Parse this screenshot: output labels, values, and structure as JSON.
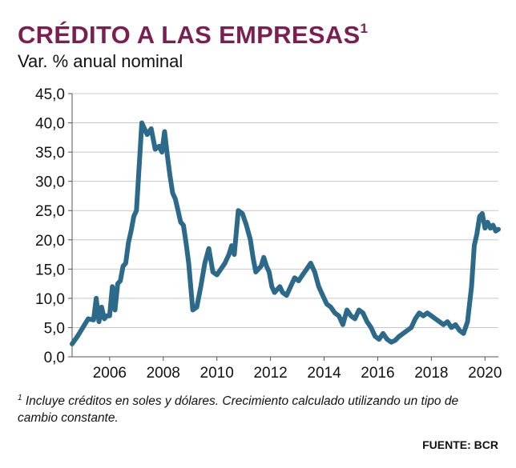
{
  "header": {
    "title": "CRÉDITO A LAS EMPRESAS",
    "title_sup": "1",
    "subtitle": "Var. % anual nominal"
  },
  "footnote": {
    "sup": "1",
    "text": "Incluye créditos en soles y dólares. Crecimiento calculado utilizando un tipo de cambio constante."
  },
  "source": "FUENTE: BCR",
  "chart_data": {
    "type": "line",
    "title": "CRÉDITO A LAS EMPRESAS",
    "ylabel": "Var. % anual nominal",
    "xlabel": "",
    "ylim": [
      0,
      45
    ],
    "xlim": [
      2004.6,
      2020.5
    ],
    "yticks": [
      "0,0",
      "5,0",
      "10,0",
      "15,0",
      "20,0",
      "25,0",
      "30,0",
      "35,0",
      "40,0",
      "45,0"
    ],
    "xticks": [
      "2006",
      "2008",
      "2010",
      "2012",
      "2014",
      "2016",
      "2018",
      "2020"
    ],
    "grid": true,
    "legend": "none",
    "line_color": "#2d6a8a",
    "series": [
      {
        "x": [
          2004.6,
          2004.8,
          2005.0,
          2005.2,
          2005.4,
          2005.5,
          2005.6,
          2005.7,
          2005.8,
          2005.9,
          2006.0,
          2006.1,
          2006.2,
          2006.3,
          2006.4,
          2006.5,
          2006.6,
          2006.7,
          2006.8,
          2006.9,
          2007.0,
          2007.2,
          2007.4,
          2007.55,
          2007.7,
          2007.85,
          2007.95,
          2008.05,
          2008.15,
          2008.25,
          2008.35,
          2008.45,
          2008.55,
          2008.65,
          2008.75,
          2008.85,
          2008.95,
          2009.1,
          2009.25,
          2009.4,
          2009.55,
          2009.7,
          2009.85,
          2010.0,
          2010.15,
          2010.3,
          2010.45,
          2010.55,
          2010.65,
          2010.8,
          2010.95,
          2011.1,
          2011.25,
          2011.35,
          2011.45,
          2011.55,
          2011.65,
          2011.75,
          2011.85,
          2011.95,
          2012.05,
          2012.15,
          2012.25,
          2012.35,
          2012.45,
          2012.6,
          2012.75,
          2012.9,
          2013.05,
          2013.2,
          2013.35,
          2013.5,
          2013.65,
          2013.8,
          2013.95,
          2014.1,
          2014.25,
          2014.4,
          2014.55,
          2014.7,
          2014.85,
          2015.0,
          2015.15,
          2015.3,
          2015.45,
          2015.6,
          2015.75,
          2015.9,
          2016.05,
          2016.2,
          2016.35,
          2016.5,
          2016.65,
          2016.8,
          2016.95,
          2017.1,
          2017.25,
          2017.4,
          2017.55,
          2017.7,
          2017.85,
          2018.0,
          2018.15,
          2018.3,
          2018.45,
          2018.6,
          2018.75,
          2018.9,
          2019.05,
          2019.2,
          2019.35,
          2019.5,
          2019.6,
          2019.7,
          2019.8,
          2019.9,
          2020.0,
          2020.1,
          2020.2,
          2020.3,
          2020.4,
          2020.5
        ],
        "y": [
          2.2,
          3.5,
          5.0,
          6.5,
          6.3,
          10.0,
          6.0,
          8.5,
          6.5,
          7.0,
          7.0,
          12.0,
          8.0,
          12.5,
          13.0,
          15.5,
          16.0,
          19.5,
          21.5,
          24.0,
          25.0,
          40.0,
          38.0,
          39.0,
          35.5,
          36.0,
          35.0,
          38.5,
          34.5,
          31.0,
          28.0,
          27.0,
          25.0,
          23.0,
          22.5,
          19.5,
          16.0,
          8.0,
          8.5,
          12.0,
          16.0,
          18.5,
          14.5,
          14.0,
          15.0,
          16.0,
          17.5,
          19.0,
          17.5,
          25.0,
          24.5,
          22.5,
          20.0,
          17.0,
          14.5,
          15.0,
          15.5,
          17.0,
          15.5,
          14.5,
          12.0,
          11.0,
          11.5,
          12.0,
          11.0,
          10.5,
          12.0,
          13.5,
          13.0,
          14.0,
          15.0,
          16.0,
          14.5,
          12.0,
          10.5,
          9.0,
          8.5,
          7.5,
          7.0,
          5.5,
          8.0,
          7.0,
          6.5,
          8.0,
          7.5,
          6.0,
          5.0,
          3.5,
          3.0,
          4.0,
          3.0,
          2.5,
          2.8,
          3.5,
          4.0,
          4.5,
          5.0,
          6.5,
          7.5,
          7.0,
          7.5,
          7.0,
          6.5,
          6.0,
          5.5,
          6.0,
          5.0,
          5.5,
          4.5,
          4.0,
          6.0,
          12.0,
          19.0,
          21.0,
          24.0,
          24.5,
          22.0,
          23.0,
          22.0,
          22.5,
          21.5,
          21.8
        ]
      }
    ]
  }
}
